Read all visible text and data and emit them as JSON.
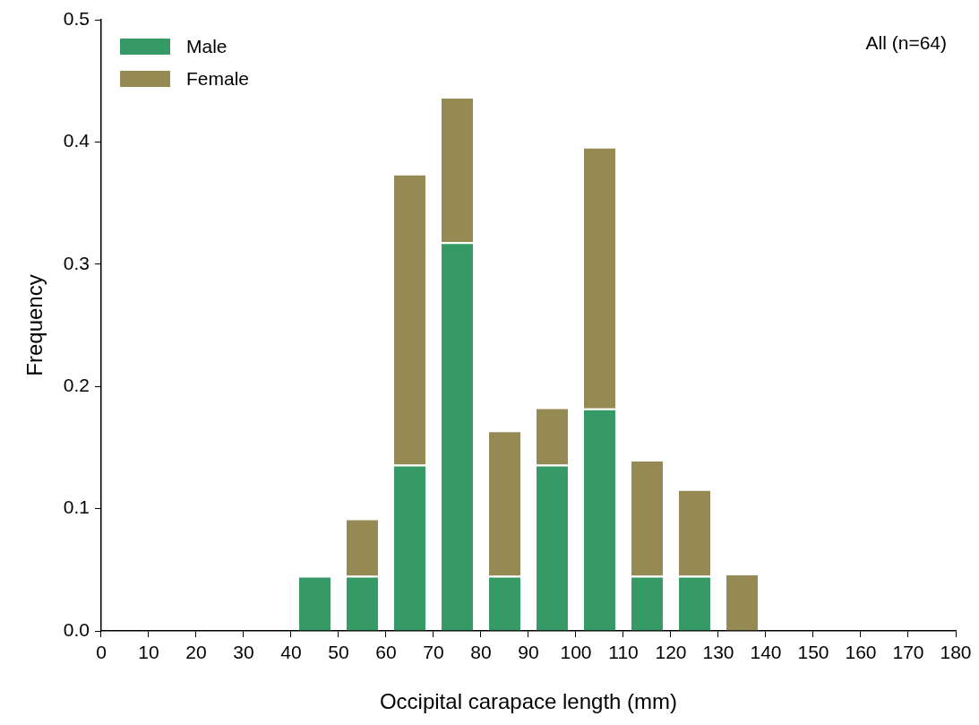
{
  "chart_data": {
    "type": "bar",
    "stacked": true,
    "xlabel": "Occipital carapace length (mm)",
    "ylabel": "Frequency",
    "x": [
      45,
      55,
      65,
      75,
      85,
      95,
      105,
      115,
      125,
      135
    ],
    "series": [
      {
        "name": "Male",
        "color": "#359a66",
        "values": [
          0.045,
          0.045,
          0.136,
          0.318,
          0.045,
          0.136,
          0.182,
          0.045,
          0.045,
          0
        ]
      },
      {
        "name": "Female",
        "color": "#958a54",
        "values": [
          0,
          0.047,
          0.238,
          0.119,
          0.119,
          0.047,
          0.214,
          0.095,
          0.071,
          0.047
        ]
      }
    ],
    "xlim": [
      0,
      180
    ],
    "xticks": [
      0,
      10,
      20,
      30,
      40,
      50,
      60,
      70,
      80,
      90,
      100,
      110,
      120,
      130,
      140,
      150,
      160,
      170,
      180
    ],
    "ylim": [
      0,
      0.5
    ],
    "yticks": [
      {
        "value": 0,
        "label": "0.0"
      },
      {
        "value": 0.1,
        "label": "0.1"
      },
      {
        "value": 0.2,
        "label": "0.2"
      },
      {
        "value": 0.3,
        "label": "0.3"
      },
      {
        "value": 0.4,
        "label": "0.4"
      },
      {
        "value": 0.5,
        "label": "0.5"
      }
    ],
    "annotations": [
      "All (n=64)"
    ],
    "legend": "top left",
    "grid": false
  }
}
